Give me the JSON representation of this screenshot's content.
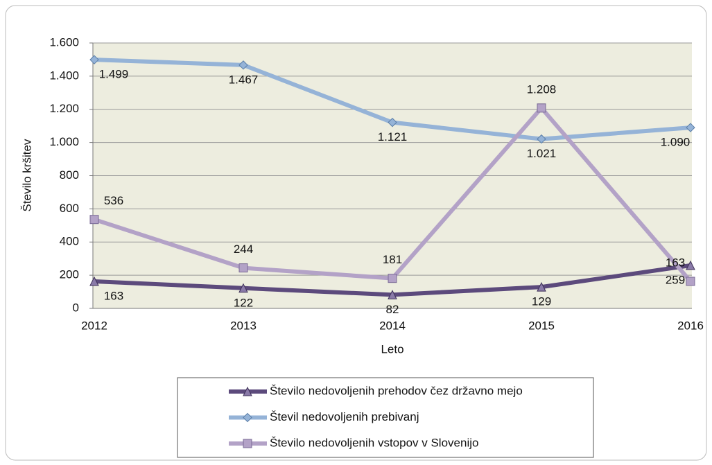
{
  "chart_data": {
    "type": "line",
    "x_label": "Leto",
    "y_label": "Število kršitev",
    "categories": [
      "2012",
      "2013",
      "2014",
      "2015",
      "2016"
    ],
    "series": [
      {
        "name": "Število nedovoljenih prehodov čez državno mejo",
        "color": "#5c4a7c",
        "marker": "triangle",
        "values": [
          163,
          122,
          82,
          129,
          259
        ]
      },
      {
        "name": "Števil nedovoljenih prebivanj",
        "color": "#95b3d7",
        "marker": "diamond",
        "values": [
          1499,
          1467,
          1121,
          1021,
          1090
        ],
        "value_labels": [
          "1.499",
          "1.467",
          "1.121",
          "1.021",
          "1.090"
        ]
      },
      {
        "name": "Število nedovoljenih vstopov v Slovenijo",
        "color": "#b3a2c7",
        "marker": "square",
        "values": [
          536,
          244,
          181,
          1208,
          163
        ],
        "value_labels": [
          "536",
          "244",
          "181",
          "1.208",
          "163"
        ]
      }
    ],
    "ylim": [
      0,
      1600
    ],
    "yticks": [
      0,
      200,
      400,
      600,
      800,
      {
        "value": 1000,
        "label": "1.000"
      },
      {
        "value": 1200,
        "label": "1.200"
      },
      {
        "value": 1400,
        "label": "1.400"
      },
      {
        "value": 1600,
        "label": "1.600"
      }
    ],
    "grid": true,
    "legend": "bottom"
  }
}
